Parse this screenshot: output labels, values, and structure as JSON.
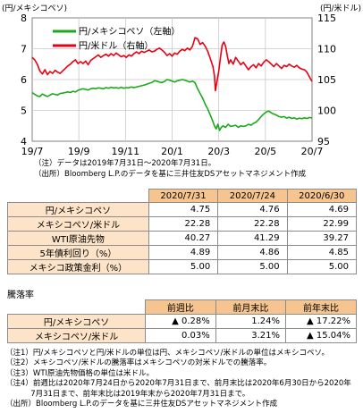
{
  "chart_data": {
    "type": "line",
    "left_unit": "(円/メキシコペソ)",
    "right_unit": "(円/米ドル)",
    "x_ticks": [
      "19/7",
      "19/9",
      "19/11",
      "20/1",
      "20/3",
      "20/5",
      "20/7"
    ],
    "y_left": {
      "ticks": [
        "4",
        "5",
        "6",
        "7",
        "8"
      ],
      "range": [
        4,
        8
      ]
    },
    "y_right": {
      "ticks": [
        "95",
        "100",
        "105",
        "110",
        "115"
      ],
      "range": [
        95,
        115
      ]
    },
    "legend_position": "top-left",
    "grid": true,
    "series": [
      {
        "name": "円/メキシコペソ（左軸）",
        "axis": "left",
        "color": "#1aaa1a",
        "points": [
          [
            0,
            5.58
          ],
          [
            3,
            5.52
          ],
          [
            6,
            5.47
          ],
          [
            9,
            5.45
          ],
          [
            12,
            5.53
          ],
          [
            15,
            5.49
          ],
          [
            18,
            5.45
          ],
          [
            21,
            5.5
          ],
          [
            24,
            5.54
          ],
          [
            27,
            5.52
          ],
          [
            30,
            5.5
          ],
          [
            33,
            5.55
          ],
          [
            36,
            5.56
          ],
          [
            39,
            5.58
          ],
          [
            42,
            5.6
          ],
          [
            45,
            5.58
          ],
          [
            48,
            5.62
          ],
          [
            51,
            5.6
          ],
          [
            54,
            5.65
          ],
          [
            57,
            5.68
          ],
          [
            60,
            5.7
          ],
          [
            63,
            5.68
          ],
          [
            66,
            5.66
          ],
          [
            69,
            5.7
          ],
          [
            72,
            5.72
          ],
          [
            75,
            5.7
          ],
          [
            78,
            5.73
          ],
          [
            81,
            5.72
          ],
          [
            84,
            5.7
          ],
          [
            87,
            5.74
          ],
          [
            90,
            5.72
          ],
          [
            93,
            5.75
          ],
          [
            96,
            5.73
          ],
          [
            99,
            5.74
          ],
          [
            102,
            5.72
          ],
          [
            105,
            5.75
          ],
          [
            108,
            5.72
          ],
          [
            111,
            5.74
          ],
          [
            114,
            5.73
          ],
          [
            117,
            5.76
          ],
          [
            120,
            5.74
          ],
          [
            123,
            5.76
          ],
          [
            126,
            5.78
          ],
          [
            129,
            5.8
          ],
          [
            132,
            5.82
          ],
          [
            135,
            5.85
          ],
          [
            138,
            5.88
          ],
          [
            141,
            5.9
          ],
          [
            144,
            5.96
          ],
          [
            147,
            5.95
          ],
          [
            150,
            5.92
          ],
          [
            153,
            5.9
          ],
          [
            156,
            5.94
          ],
          [
            159,
            6.0
          ],
          [
            162,
            5.98
          ],
          [
            165,
            5.95
          ],
          [
            168,
            5.92
          ],
          [
            171,
            5.96
          ],
          [
            174,
            5.98
          ],
          [
            177,
            6.0
          ],
          [
            180,
            5.98
          ],
          [
            183,
            5.95
          ],
          [
            186,
            5.92
          ],
          [
            189,
            5.95
          ],
          [
            192,
            5.9
          ],
          [
            195,
            5.7
          ],
          [
            198,
            5.55
          ],
          [
            201,
            5.4
          ],
          [
            204,
            5.2
          ],
          [
            207,
            5.05
          ],
          [
            210,
            4.85
          ],
          [
            213,
            4.65
          ],
          [
            215,
            4.5
          ],
          [
            217,
            4.4
          ],
          [
            219,
            4.55
          ],
          [
            221,
            4.35
          ],
          [
            223,
            4.45
          ],
          [
            225,
            4.5
          ],
          [
            228,
            4.45
          ],
          [
            231,
            4.55
          ],
          [
            234,
            4.48
          ],
          [
            237,
            4.5
          ],
          [
            240,
            4.52
          ],
          [
            243,
            4.45
          ],
          [
            246,
            4.5
          ],
          [
            249,
            4.48
          ],
          [
            252,
            4.5
          ],
          [
            255,
            4.55
          ],
          [
            258,
            4.52
          ],
          [
            261,
            4.58
          ],
          [
            264,
            4.62
          ],
          [
            267,
            4.7
          ],
          [
            270,
            4.8
          ],
          [
            273,
            4.88
          ],
          [
            276,
            4.95
          ],
          [
            279,
            4.98
          ],
          [
            282,
            4.92
          ],
          [
            285,
            4.88
          ],
          [
            288,
            4.85
          ],
          [
            291,
            4.8
          ],
          [
            294,
            4.78
          ],
          [
            297,
            4.8
          ],
          [
            300,
            4.75
          ],
          [
            303,
            4.78
          ],
          [
            306,
            4.74
          ],
          [
            309,
            4.76
          ],
          [
            312,
            4.72
          ],
          [
            315,
            4.75
          ],
          [
            318,
            4.73
          ],
          [
            321,
            4.76
          ],
          [
            324,
            4.74
          ],
          [
            327,
            4.77
          ],
          [
            330,
            4.75
          ]
        ]
      },
      {
        "name": "円/米ドル（右軸）",
        "axis": "right",
        "color": "#e60012",
        "points": [
          [
            0,
            108.6
          ],
          [
            3,
            108.2
          ],
          [
            6,
            107.5
          ],
          [
            9,
            106.4
          ],
          [
            12,
            105.9
          ],
          [
            15,
            106.6
          ],
          [
            18,
            105.8
          ],
          [
            21,
            106.3
          ],
          [
            24,
            106.0
          ],
          [
            27,
            106.5
          ],
          [
            30,
            106.2
          ],
          [
            33,
            106.0
          ],
          [
            36,
            106.4
          ],
          [
            39,
            106.8
          ],
          [
            42,
            107.2
          ],
          [
            45,
            107.5
          ],
          [
            48,
            107.9
          ],
          [
            51,
            108.2
          ],
          [
            54,
            107.6
          ],
          [
            57,
            107.9
          ],
          [
            60,
            107.6
          ],
          [
            63,
            108.0
          ],
          [
            66,
            107.4
          ],
          [
            69,
            108.1
          ],
          [
            72,
            108.4
          ],
          [
            75,
            108.7
          ],
          [
            78,
            109.0
          ],
          [
            81,
            108.6
          ],
          [
            84,
            108.9
          ],
          [
            87,
            109.1
          ],
          [
            90,
            108.8
          ],
          [
            93,
            109.2
          ],
          [
            96,
            108.9
          ],
          [
            99,
            109.3
          ],
          [
            102,
            109.0
          ],
          [
            105,
            108.7
          ],
          [
            108,
            108.9
          ],
          [
            111,
            108.6
          ],
          [
            114,
            109.0
          ],
          [
            117,
            108.8
          ],
          [
            120,
            109.2
          ],
          [
            123,
            109.5
          ],
          [
            126,
            109.2
          ],
          [
            129,
            109.6
          ],
          [
            132,
            109.4
          ],
          [
            135,
            109.6
          ],
          [
            138,
            109.8
          ],
          [
            141,
            109.5
          ],
          [
            144,
            109.6
          ],
          [
            147,
            109.9
          ],
          [
            150,
            110.1
          ],
          [
            153,
            109.8
          ],
          [
            156,
            109.4
          ],
          [
            159,
            108.9
          ],
          [
            162,
            109.2
          ],
          [
            165,
            108.8
          ],
          [
            168,
            109.3
          ],
          [
            171,
            109.1
          ],
          [
            174,
            109.6
          ],
          [
            177,
            109.9
          ],
          [
            180,
            109.7
          ],
          [
            183,
            110.1
          ],
          [
            186,
            109.8
          ],
          [
            189,
            110.4
          ],
          [
            192,
            111.8
          ],
          [
            195,
            111.6
          ],
          [
            198,
            110.7
          ],
          [
            201,
            111.0
          ],
          [
            204,
            110.4
          ],
          [
            207,
            109.6
          ],
          [
            210,
            108.4
          ],
          [
            213,
            107.2
          ],
          [
            215,
            105.6
          ],
          [
            216,
            103.2
          ],
          [
            218,
            104.8
          ],
          [
            220,
            106.4
          ],
          [
            222,
            108.6
          ],
          [
            224,
            110.6
          ],
          [
            226,
            111.1
          ],
          [
            228,
            110.4
          ],
          [
            230,
            108.9
          ],
          [
            232,
            107.6
          ],
          [
            234,
            108.2
          ],
          [
            237,
            107.5
          ],
          [
            240,
            108.6
          ],
          [
            243,
            108.0
          ],
          [
            246,
            107.4
          ],
          [
            249,
            107.8
          ],
          [
            252,
            107.2
          ],
          [
            255,
            106.6
          ],
          [
            258,
            107.1
          ],
          [
            261,
            107.4
          ],
          [
            264,
            106.9
          ],
          [
            267,
            107.6
          ],
          [
            270,
            107.2
          ],
          [
            273,
            107.8
          ],
          [
            276,
            108.2
          ],
          [
            279,
            107.9
          ],
          [
            282,
            107.5
          ],
          [
            285,
            107.1
          ],
          [
            288,
            107.6
          ],
          [
            291,
            107.2
          ],
          [
            294,
            106.8
          ],
          [
            297,
            107.3
          ],
          [
            300,
            107.1
          ],
          [
            303,
            107.5
          ],
          [
            306,
            107.2
          ],
          [
            309,
            107.0
          ],
          [
            312,
            107.3
          ],
          [
            315,
            106.9
          ],
          [
            318,
            106.7
          ],
          [
            321,
            106.6
          ],
          [
            324,
            106.2
          ],
          [
            327,
            105.4
          ],
          [
            330,
            104.7
          ]
        ]
      }
    ]
  },
  "chart_notes": [
    "（注）データは2019年7月31日～2020年7月31日。",
    "（出所）Bloomberg L.P.のデータを基に三井住友DSアセットマネジメント作成"
  ],
  "rates_table": {
    "headers": [
      "2020/7/31",
      "2020/7/24",
      "2020/6/30"
    ],
    "rows": [
      {
        "label": "円/メキシコペソ",
        "values": [
          "4.75",
          "4.76",
          "4.69"
        ]
      },
      {
        "label": "メキシコペソ/米ドル",
        "values": [
          "22.28",
          "22.28",
          "22.99"
        ]
      },
      {
        "label": "WTI原油先物",
        "values": [
          "40.27",
          "41.29",
          "39.27"
        ]
      },
      {
        "label": "5年債利回り（%）",
        "values": [
          "4.89",
          "4.86",
          "4.85"
        ]
      },
      {
        "label": "メキシコ政策金利（%）",
        "values": [
          "5.00",
          "5.00",
          "5.00"
        ]
      }
    ]
  },
  "change_section_title": "騰落率",
  "change_table": {
    "headers": [
      "前週比",
      "前月末比",
      "前年末比"
    ],
    "rows": [
      {
        "label": "円/メキシコペソ",
        "values": [
          "▲ 0.28%",
          "1.24%",
          "▲ 17.22%"
        ]
      },
      {
        "label": "メキシコペソ/米ドル",
        "values": [
          "0.03%",
          "3.21%",
          "▲ 15.04%"
        ]
      }
    ]
  },
  "footnotes": [
    "（注1）円/メキシコペソと円/米ドルの単位は円、メキシコペソ/米ドルの単位はメキシコペソ。",
    "（注2）メキシコペソ/米ドルの騰落率はメキシコペソの対米ドルでの騰落率。",
    "（注3）WTI原油先物価格の単位は米ドル。",
    "（注4）前週比は2020年7月24日から2020年7月31日まで、前月末比は2020年6月30日から2020年",
    "　　　 7月31日まで、前年末比は2019年末から2020年7月31日まで。",
    "（出所）Bloomberg L.P.のデータを基に三井住友DSアセットマネジメント作成"
  ]
}
